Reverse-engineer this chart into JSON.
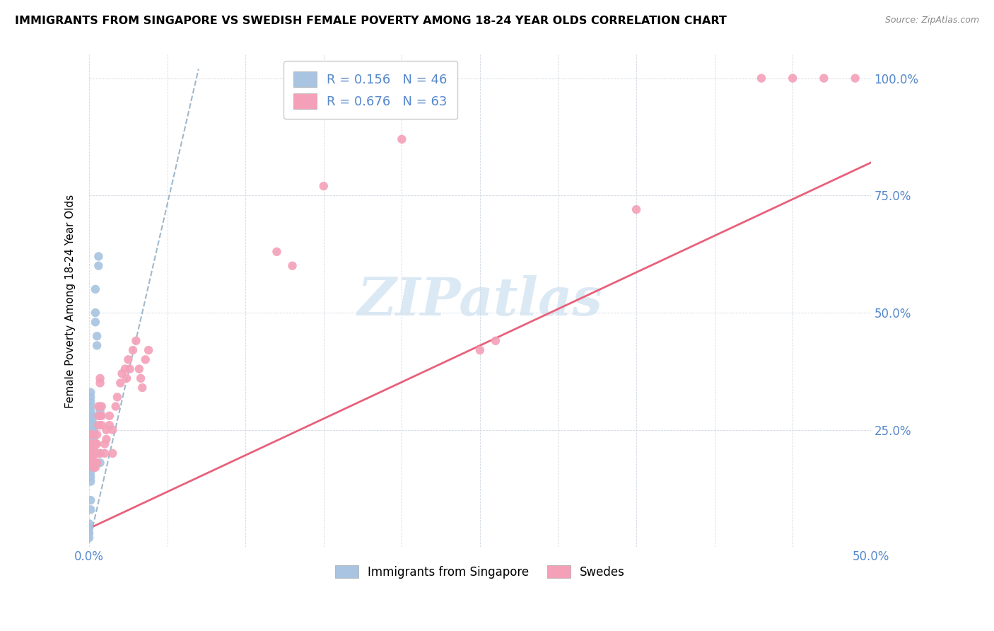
{
  "title": "IMMIGRANTS FROM SINGAPORE VS SWEDISH FEMALE POVERTY AMONG 18-24 YEAR OLDS CORRELATION CHART",
  "source": "Source: ZipAtlas.com",
  "ylabel": "Female Poverty Among 18-24 Year Olds",
  "xlim": [
    0.0,
    0.5
  ],
  "ylim": [
    0.0,
    1.05
  ],
  "blue_color": "#a8c4e0",
  "pink_color": "#f4a0b8",
  "trend_blue_color": "#a0b8cc",
  "trend_pink_color": "#e8607a",
  "label_color": "#5588cc",
  "watermark_color": "#cce0f0",
  "blue_x": [
    0.001,
    0.001,
    0.001,
    0.001,
    0.001,
    0.001,
    0.001,
    0.001,
    0.001,
    0.001,
    0.001,
    0.001,
    0.001,
    0.001,
    0.001,
    0.001,
    0.001,
    0.001,
    0.001,
    0.001,
    0.002,
    0.002,
    0.002,
    0.002,
    0.002,
    0.002,
    0.003,
    0.003,
    0.003,
    0.003,
    0.004,
    0.004,
    0.004,
    0.005,
    0.005,
    0.0,
    0.0,
    0.0,
    0.0,
    0.006,
    0.006,
    0.007,
    0.007,
    0.007,
    0.007,
    0.007
  ],
  "blue_y": [
    0.24,
    0.25,
    0.26,
    0.27,
    0.28,
    0.29,
    0.3,
    0.31,
    0.32,
    0.33,
    0.2,
    0.21,
    0.22,
    0.17,
    0.18,
    0.16,
    0.15,
    0.14,
    0.1,
    0.08,
    0.24,
    0.25,
    0.26,
    0.27,
    0.28,
    0.22,
    0.23,
    0.24,
    0.25,
    0.26,
    0.55,
    0.5,
    0.48,
    0.45,
    0.43,
    0.02,
    0.03,
    0.05,
    0.04,
    0.6,
    0.62,
    0.28,
    0.29,
    0.3,
    0.2,
    0.18
  ],
  "pink_x": [
    0.001,
    0.001,
    0.001,
    0.002,
    0.002,
    0.002,
    0.002,
    0.002,
    0.003,
    0.003,
    0.003,
    0.003,
    0.003,
    0.004,
    0.004,
    0.004,
    0.004,
    0.005,
    0.005,
    0.005,
    0.005,
    0.006,
    0.006,
    0.006,
    0.007,
    0.007,
    0.007,
    0.008,
    0.008,
    0.008,
    0.01,
    0.01,
    0.011,
    0.011,
    0.013,
    0.013,
    0.015,
    0.015,
    0.017,
    0.018,
    0.02,
    0.021,
    0.023,
    0.024,
    0.025,
    0.026,
    0.028,
    0.03,
    0.032,
    0.033,
    0.034,
    0.036,
    0.038,
    0.12,
    0.13,
    0.15,
    0.2,
    0.25,
    0.26,
    0.35,
    0.43,
    0.45,
    0.47,
    0.49
  ],
  "pink_y": [
    0.24,
    0.22,
    0.2,
    0.24,
    0.22,
    0.2,
    0.18,
    0.19,
    0.21,
    0.22,
    0.2,
    0.18,
    0.17,
    0.2,
    0.22,
    0.18,
    0.17,
    0.2,
    0.22,
    0.24,
    0.18,
    0.3,
    0.28,
    0.26,
    0.35,
    0.36,
    0.2,
    0.3,
    0.28,
    0.26,
    0.22,
    0.2,
    0.25,
    0.23,
    0.28,
    0.26,
    0.25,
    0.2,
    0.3,
    0.32,
    0.35,
    0.37,
    0.38,
    0.36,
    0.4,
    0.38,
    0.42,
    0.44,
    0.38,
    0.36,
    0.34,
    0.4,
    0.42,
    0.63,
    0.6,
    0.77,
    0.87,
    0.42,
    0.44,
    0.72,
    1.0,
    1.0,
    1.0,
    1.0
  ],
  "blue_trend_x0": 0.0,
  "blue_trend_x1": 0.07,
  "blue_trend_y0": 0.01,
  "blue_trend_y1": 1.02,
  "pink_trend_x0": 0.0,
  "pink_trend_x1": 0.5,
  "pink_trend_y0": 0.04,
  "pink_trend_y1": 0.82
}
